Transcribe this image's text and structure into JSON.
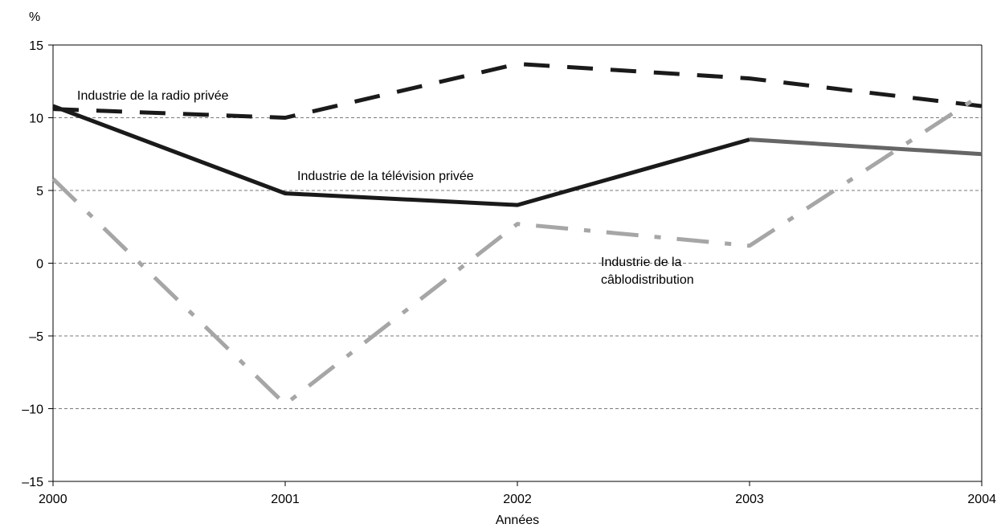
{
  "chart_data": {
    "type": "line",
    "title": "",
    "y_unit_label": "%",
    "xlabel": "Années",
    "ylabel": "",
    "x": [
      "2000",
      "2001",
      "2002",
      "2003",
      "2004"
    ],
    "ylim": [
      -15,
      15
    ],
    "yticks": [
      15,
      10,
      5,
      0,
      -5,
      -10,
      -15
    ],
    "ytick_labels": [
      "15",
      "10",
      "5",
      "0",
      "–5",
      "–10",
      "–15"
    ],
    "grid": "horizontal dashed at 10, 5, 0, -5, -10",
    "series": [
      {
        "name": "Industrie de la radio privée",
        "values": [
          10.6,
          10.0,
          13.7,
          12.7,
          10.8
        ],
        "color": "#1a1a1a",
        "style": "dashed"
      },
      {
        "name": "Industrie de la télévision privée",
        "values": [
          10.8,
          4.8,
          4.0,
          8.5,
          7.5
        ],
        "color": "#1a1a1a",
        "style": "solid",
        "last_segment_color": "#666666"
      },
      {
        "name": "Industrie de la câblodistribution",
        "values": [
          5.8,
          -9.7,
          2.7,
          1.2,
          11.6
        ],
        "color": "#a6a6a6",
        "style": "dash-dot"
      }
    ],
    "annotations": [
      {
        "series": 0,
        "lines": [
          "Industrie de la radio privée"
        ]
      },
      {
        "series": 1,
        "lines": [
          "Industrie de la télévision privée"
        ]
      },
      {
        "series": 2,
        "lines": [
          "Industrie de la",
          "câblodistribution"
        ]
      }
    ]
  }
}
